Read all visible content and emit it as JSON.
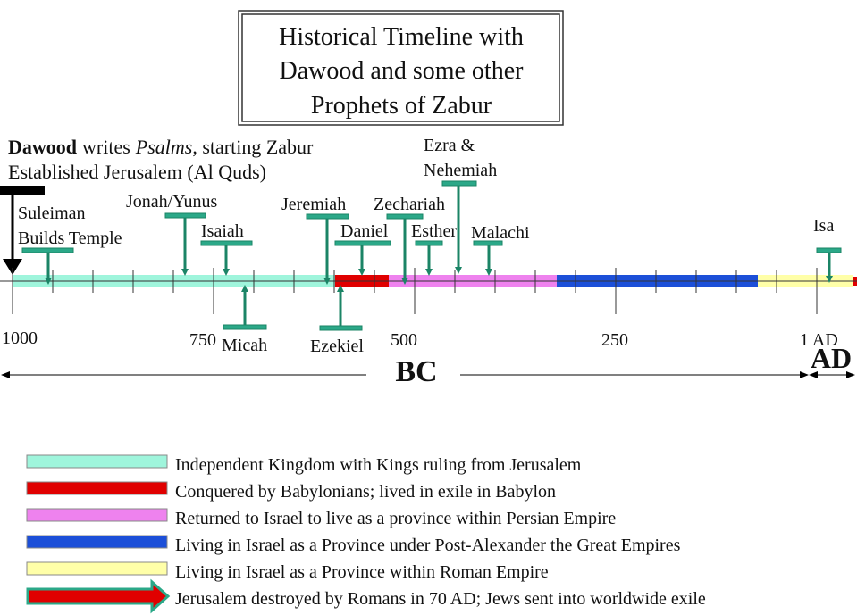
{
  "title": {
    "lines": [
      "Historical Timeline with",
      "Dawood and some other",
      "Prophets of Zabur"
    ]
  },
  "intro": {
    "name": "Dawood",
    "verb": "writes",
    "work": "Psalms",
    "rest": ", starting Zabur",
    "line2": "Established Jerusalem (Al Quds)"
  },
  "prophets": [
    {
      "lines": [
        "Suleiman",
        "Builds Temple"
      ]
    },
    {
      "lines": [
        "Jonah/Yunus"
      ]
    },
    {
      "lines": [
        "Isaiah"
      ]
    },
    {
      "lines": [
        "Micah"
      ]
    },
    {
      "lines": [
        "Jeremiah"
      ]
    },
    {
      "lines": [
        "Ezekiel"
      ]
    },
    {
      "lines": [
        "Daniel"
      ]
    },
    {
      "lines": [
        "Zechariah"
      ]
    },
    {
      "lines": [
        "Esther"
      ]
    },
    {
      "lines": [
        "Ezra &",
        "Nehemiah"
      ]
    },
    {
      "lines": [
        "Malachi"
      ]
    },
    {
      "lines": [
        "Isa"
      ]
    }
  ],
  "axis": {
    "labels": [
      "1000",
      "750",
      "500",
      "250",
      "1 AD"
    ],
    "bc": "BC",
    "ad": "AD"
  },
  "legend": [
    "Independent Kingdom with Kings ruling from Jerusalem",
    "Conquered by Babylonians; lived in exile in Babylon",
    "Returned to Israel to live as a province within Persian Empire",
    "Living in Israel as a Province under Post-Alexander the Great Empires",
    "Living in Israel as a Province within Roman Empire",
    "Jerusalem destroyed by Romans in 70 AD; Jews sent into worldwide exile"
  ]
}
